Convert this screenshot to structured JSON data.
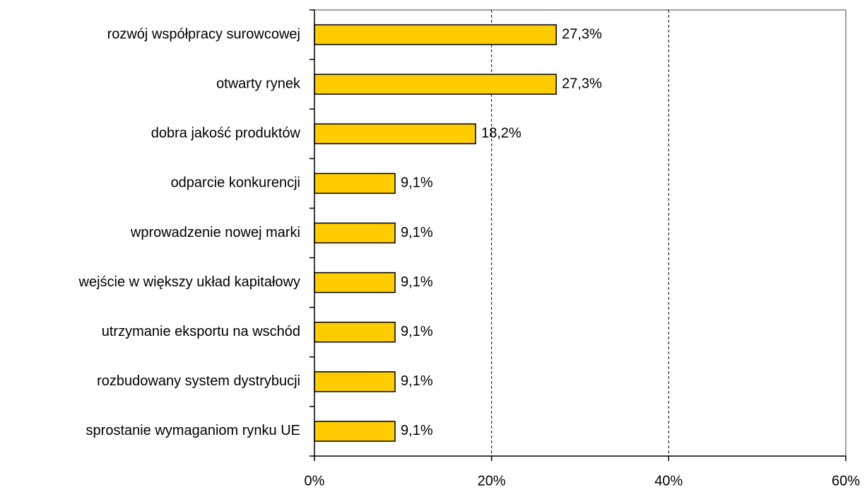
{
  "chart_data": {
    "type": "barh",
    "categories": [
      "rozwój współpracy surowcowej",
      "otwarty rynek",
      "dobra jakość produktów",
      "odparcie konkurencji",
      "wprowadzenie nowej marki",
      "wejście w większy układ kapitałowy",
      "utrzymanie eksportu na wschód",
      "rozbudowany system dystrybucji",
      "sprostanie wymaganiom rynku UE"
    ],
    "values": [
      27.3,
      27.3,
      18.2,
      9.1,
      9.1,
      9.1,
      9.1,
      9.1,
      9.1
    ],
    "value_labels": [
      "27,3%",
      "27,3%",
      "18,2%",
      "9,1%",
      "9,1%",
      "9,1%",
      "9,1%",
      "9,1%",
      "9,1%"
    ],
    "color": "#ffcc00",
    "xlim": [
      0,
      60
    ],
    "xticks": [
      {
        "value": 0,
        "label": "0%"
      },
      {
        "value": 20,
        "label": "20%"
      },
      {
        "value": 40,
        "label": "40%"
      },
      {
        "value": 60,
        "label": "60%"
      }
    ],
    "grid": true
  }
}
